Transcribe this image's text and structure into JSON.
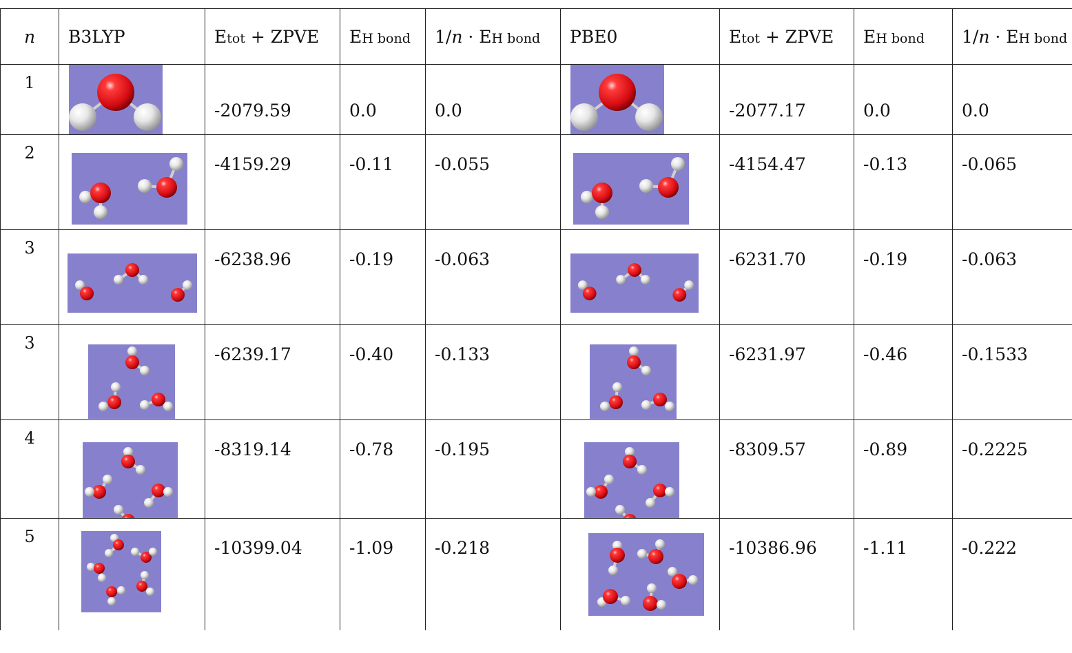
{
  "header": {
    "n": "n",
    "method1": "B3LYP",
    "etot_main": "E",
    "etot_sub": "tot",
    "etot_rest": " + ZPVE",
    "eh_main": "E",
    "eh_sub": "H bond",
    "inv_prefix": "1/",
    "inv_n": "n",
    "inv_dot": " · E",
    "inv_sub": "H bond",
    "method2": "PBE0"
  },
  "rows": [
    {
      "n": "1",
      "b3_mol": "water-monomer",
      "b3_e": "-2079.59",
      "b3_eh": "0.0",
      "b3_inv": "0.0",
      "pbe_mol": "water-monomer",
      "pbe_e": "-2077.17",
      "pbe_eh": "0.0",
      "pbe_inv": "0.0"
    },
    {
      "n": "2",
      "b3_mol": "water-dimer",
      "b3_e": "-4159.29",
      "b3_eh": "-0.11",
      "b3_inv": "-0.055",
      "pbe_mol": "water-dimer",
      "pbe_e": "-4154.47",
      "pbe_eh": "-0.13",
      "pbe_inv": "-0.065"
    },
    {
      "n": "3",
      "b3_mol": "water-trimer-chain",
      "b3_e": "-6238.96",
      "b3_eh": "-0.19",
      "b3_inv": "-0.063",
      "pbe_mol": "water-trimer-chain",
      "pbe_e": "-6231.70",
      "pbe_eh": "-0.19",
      "pbe_inv": "-0.063"
    },
    {
      "n": "3",
      "b3_mol": "water-trimer-cyclic",
      "b3_e": "-6239.17",
      "b3_eh": "-0.40",
      "b3_inv": "-0.133",
      "pbe_mol": "water-trimer-cyclic",
      "pbe_e": "-6231.97",
      "pbe_eh": "-0.46",
      "pbe_inv": "-0.1533"
    },
    {
      "n": "4",
      "b3_mol": "water-tetramer-cyclic",
      "b3_e": "-8319.14",
      "b3_eh": "-0.78",
      "b3_inv": "-0.195",
      "pbe_mol": "water-tetramer-cyclic",
      "pbe_e": "-8309.57",
      "pbe_eh": "-0.89",
      "pbe_inv": "-0.2225"
    },
    {
      "n": "5",
      "b3_mol": "water-pentamer-cyclic",
      "b3_e": "-10399.04",
      "b3_eh": "-1.09",
      "b3_inv": "-0.218",
      "pbe_mol": "water-pentamer-cluster",
      "pbe_e": "-10386.96",
      "pbe_eh": "-1.11",
      "pbe_inv": "-0.222"
    }
  ],
  "colors": {
    "backdrop": "#8781cd",
    "oxygen": "#e8141c",
    "hydrogen": "#f0f0f0",
    "border": "#222222"
  }
}
